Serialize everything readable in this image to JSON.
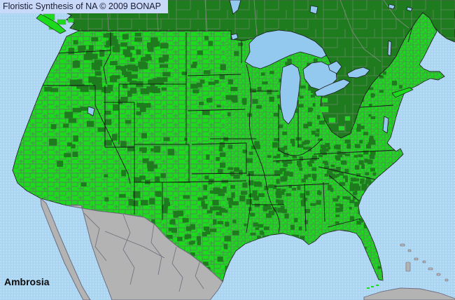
{
  "header": {
    "title": "Floristic Synthesis of NA © 2009 BONAP"
  },
  "footer": {
    "species_label": "Ambrosia"
  },
  "colors": {
    "ocean": "#ABD5F0",
    "ocean_dot": "#C9E6FA",
    "lake": "#93C9EF",
    "present": "#1CDB1C",
    "absent": "#1E7B1E",
    "canada_land": "#1E7B1E",
    "mexico_land": "#B3B3B3",
    "county_border": "#55855c",
    "canada_border": "#7c8c7c",
    "state_border": "#161616",
    "coast_line": "#1c1c1c",
    "mexico_border": "#6e6e7e",
    "titlebar_bg": "#C9D9F9",
    "titlebar_text": "#1c1c30",
    "label_text": "#0d0d0d"
  }
}
